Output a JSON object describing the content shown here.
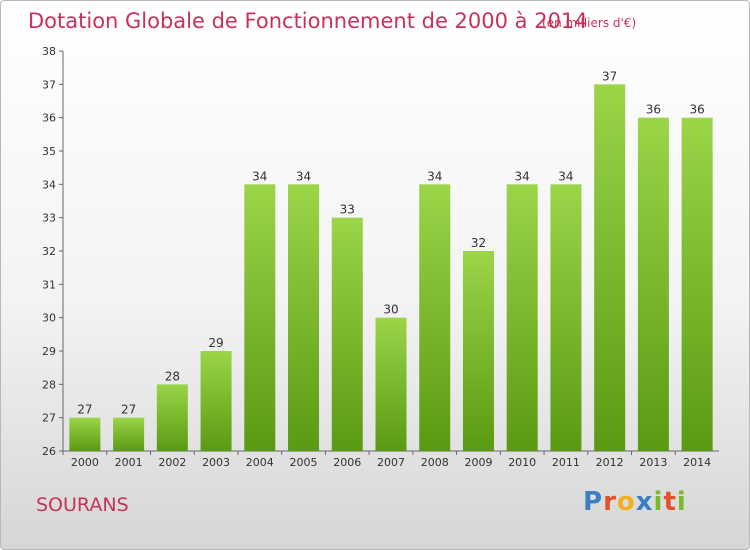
{
  "header": {
    "title": "Dotation Globale de Fonctionnement de 2000 à 2014",
    "subtitle": "(en milliers d'€)"
  },
  "footer": {
    "commune": "SOURANS",
    "logo_text": "Proxiti",
    "logo_colors": [
      "#3a7fc4",
      "#e0532a",
      "#f2b01e",
      "#3a7fc4",
      "#7ab82c",
      "#e0532a",
      "#7ab82c"
    ]
  },
  "colors": {
    "title": "#c8325a",
    "bar_top": "#9bd548",
    "bar_bottom": "#5a9a12"
  },
  "chart_data": {
    "type": "bar",
    "title": "Dotation Globale de Fonctionnement de 2000 à 2014",
    "subtitle": "(en milliers d'€)",
    "categories": [
      "2000",
      "2001",
      "2002",
      "2003",
      "2004",
      "2005",
      "2006",
      "2007",
      "2008",
      "2009",
      "2010",
      "2011",
      "2012",
      "2013",
      "2014"
    ],
    "values": [
      27,
      27,
      28,
      29,
      34,
      34,
      33,
      30,
      34,
      32,
      34,
      34,
      37,
      36,
      36
    ],
    "ylim": [
      26,
      38
    ],
    "yticks": [
      26,
      27,
      28,
      29,
      30,
      31,
      32,
      33,
      34,
      35,
      36,
      37,
      38
    ],
    "grid": false,
    "data_labels": true
  }
}
